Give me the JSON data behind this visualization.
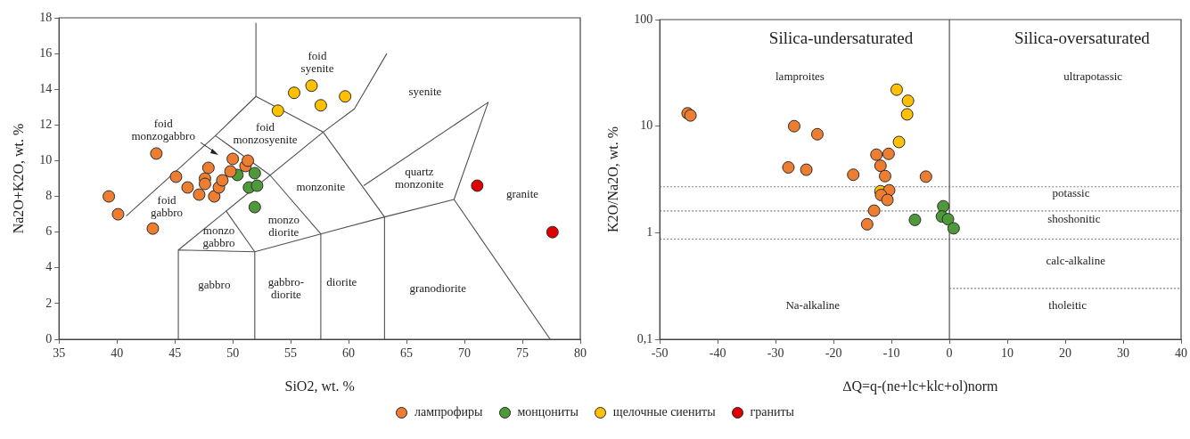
{
  "chart_data": [
    {
      "type": "scatter",
      "xlabel": "SiO2, wt. %",
      "ylabel": "Na2O+K2O, wt. %",
      "xlim": [
        35,
        80
      ],
      "xticks": [
        35,
        40,
        45,
        50,
        55,
        60,
        65,
        70,
        75,
        80
      ],
      "ylim": [
        0,
        18
      ],
      "yticks": [
        0,
        2,
        4,
        6,
        8,
        10,
        12,
        14,
        16,
        18
      ],
      "grid": false,
      "legend": "bottom",
      "marker": "circle",
      "series": [
        {
          "name": "лампрофиры",
          "color": "#ed7d31",
          "x": [
            39.3,
            40.1,
            43.1,
            43.4,
            45.1,
            46.1,
            47.1,
            47.6,
            47.6,
            47.9,
            48.4,
            48.8,
            49.1,
            49.8,
            50.0,
            51.1,
            51.3
          ],
          "values": [
            8.0,
            7.0,
            6.2,
            10.4,
            9.1,
            8.5,
            8.1,
            9.0,
            8.7,
            9.6,
            8.0,
            8.5,
            8.9,
            9.4,
            10.1,
            9.7,
            10.0
          ]
        },
        {
          "name": "монцониты",
          "color": "#4e9a3a",
          "x": [
            50.4,
            51.9,
            51.4,
            52.1,
            51.9
          ],
          "values": [
            9.2,
            9.3,
            8.5,
            8.6,
            7.4
          ]
        },
        {
          "name": "щелочные сиениты",
          "color": "#ffc000",
          "x": [
            53.9,
            55.3,
            56.8,
            57.6,
            59.7
          ],
          "values": [
            12.8,
            13.8,
            14.2,
            13.1,
            13.6
          ]
        },
        {
          "name": "граниты",
          "color": "#e00000",
          "x": [
            71.1,
            77.6
          ],
          "values": [
            8.6,
            6.0
          ]
        },
        {
          "type": "line",
          "color": "#505050",
          "marker": "none",
          "x": [
            52,
            52
          ],
          "values": [
            17.7,
            13.6
          ]
        },
        {
          "type": "line",
          "color": "#505050",
          "marker": "none",
          "x": [
            40.8,
            48.5,
            52,
            57.8,
            60.5,
            63.3
          ],
          "values": [
            6.9,
            11.4,
            13.6,
            11.6,
            12.9,
            16.0
          ]
        },
        {
          "type": "line",
          "color": "#505050",
          "marker": "none",
          "x": [
            48.5,
            53.2,
            57.6
          ],
          "values": [
            11.4,
            9.2,
            5.9
          ]
        },
        {
          "type": "line",
          "color": "#505050",
          "marker": "none",
          "x": [
            45.3,
            45.3,
            51.9,
            57.6,
            63.1,
            69.1,
            77.4
          ],
          "values": [
            0,
            5.0,
            4.9,
            5.9,
            6.85,
            7.83,
            0
          ]
        },
        {
          "type": "line",
          "color": "#505050",
          "marker": "none",
          "x": [
            45.3,
            57.8
          ],
          "values": [
            5.0,
            11.6
          ]
        },
        {
          "type": "line",
          "color": "#505050",
          "marker": "none",
          "x": [
            51.9,
            51.9,
            49.4
          ],
          "values": [
            0,
            4.9,
            7.2
          ]
        },
        {
          "type": "line",
          "color": "#505050",
          "marker": "none",
          "x": [
            57.6,
            57.6
          ],
          "values": [
            0,
            5.9
          ]
        },
        {
          "type": "line",
          "color": "#505050",
          "marker": "none",
          "x": [
            63.1,
            63.1,
            57.8
          ],
          "values": [
            0,
            6.85,
            11.6
          ]
        },
        {
          "type": "line",
          "color": "#505050",
          "marker": "none",
          "x": [
            61.3,
            72.05,
            69.1
          ],
          "values": [
            8.6,
            13.27,
            7.83
          ]
        }
      ],
      "annotations": [
        "foid syenite",
        "syenite",
        "foid monzosyenite",
        "foid monzogabbro",
        "monzonite",
        "quartz monzonite",
        "granite",
        "monzo gabbro",
        "monzo diorite",
        "foid gabbro",
        "gabbro",
        "gabbro- diorite",
        "diorite",
        "granodiorite"
      ]
    },
    {
      "type": "scatter",
      "xlabel": "∆Q=q-(ne+lc+klc+ol)norm",
      "ylabel": "K2O/Na2O, wt. %",
      "log": "y",
      "xlim": [
        -50,
        40
      ],
      "xticks": [
        -50,
        -40,
        -30,
        -20,
        -10,
        0,
        10,
        20,
        30,
        40
      ],
      "ylim": [
        0.1,
        100
      ],
      "yticks": [
        {
          "value": 0.1,
          "label": "0,1"
        },
        1,
        10,
        100
      ],
      "grid": false,
      "legend": "bottom",
      "marker": "circle",
      "series": [
        {
          "name": "лампрофиры",
          "color": "#ed7d31",
          "x": [
            -45.2,
            -44.7,
            -26.8,
            -22.8,
            -27.8,
            -24.7,
            -16.6,
            -12.6,
            -10.5,
            -11.9,
            -11.1,
            -4.05,
            -10.4,
            -11.8,
            -10.7,
            -13.0,
            -14.2
          ],
          "values": [
            13.2,
            12.6,
            10.0,
            8.4,
            4.1,
            3.9,
            3.5,
            5.4,
            5.5,
            4.25,
            3.4,
            3.36,
            2.5,
            2.26,
            2.03,
            1.61,
            1.2
          ]
        },
        {
          "name": "монцониты",
          "color": "#4e9a3a",
          "x": [
            -1.06,
            -1.3,
            -0.24,
            -5.95,
            0.73
          ],
          "values": [
            1.77,
            1.42,
            1.34,
            1.32,
            1.1
          ]
        },
        {
          "name": "щелочные сиениты",
          "color": "#ffc000",
          "x": [
            -9.1,
            -7.15,
            -7.3,
            -8.7,
            -11.9
          ],
          "values": [
            22.0,
            17.3,
            12.9,
            7.1,
            2.45
          ]
        },
        {
          "type": "line",
          "color": "#808080",
          "marker": "none",
          "line_style": "dotted",
          "x": [
            0,
            40
          ],
          "values": [
            0.3,
            0.3
          ]
        }
      ],
      "ref_lines": [
        {
          "axis": "y",
          "value": 2.7,
          "color": "#808080",
          "line_style": "dotted"
        },
        {
          "axis": "y",
          "value": 1.6,
          "color": "#808080",
          "line_style": "dotted"
        },
        {
          "axis": "y",
          "value": 0.87,
          "color": "#808080",
          "line_style": "dotted"
        },
        {
          "axis": "x",
          "value": 0,
          "color": "#404040",
          "line_style": "solid"
        }
      ],
      "annotations": [
        "Silica-undersaturated",
        "Silica-oversaturated",
        "lamproites",
        "ultrapotassic",
        "potassic",
        "shoshonitic",
        "calc-alkaline",
        "tholeitic",
        "Na-alkaline"
      ]
    }
  ]
}
